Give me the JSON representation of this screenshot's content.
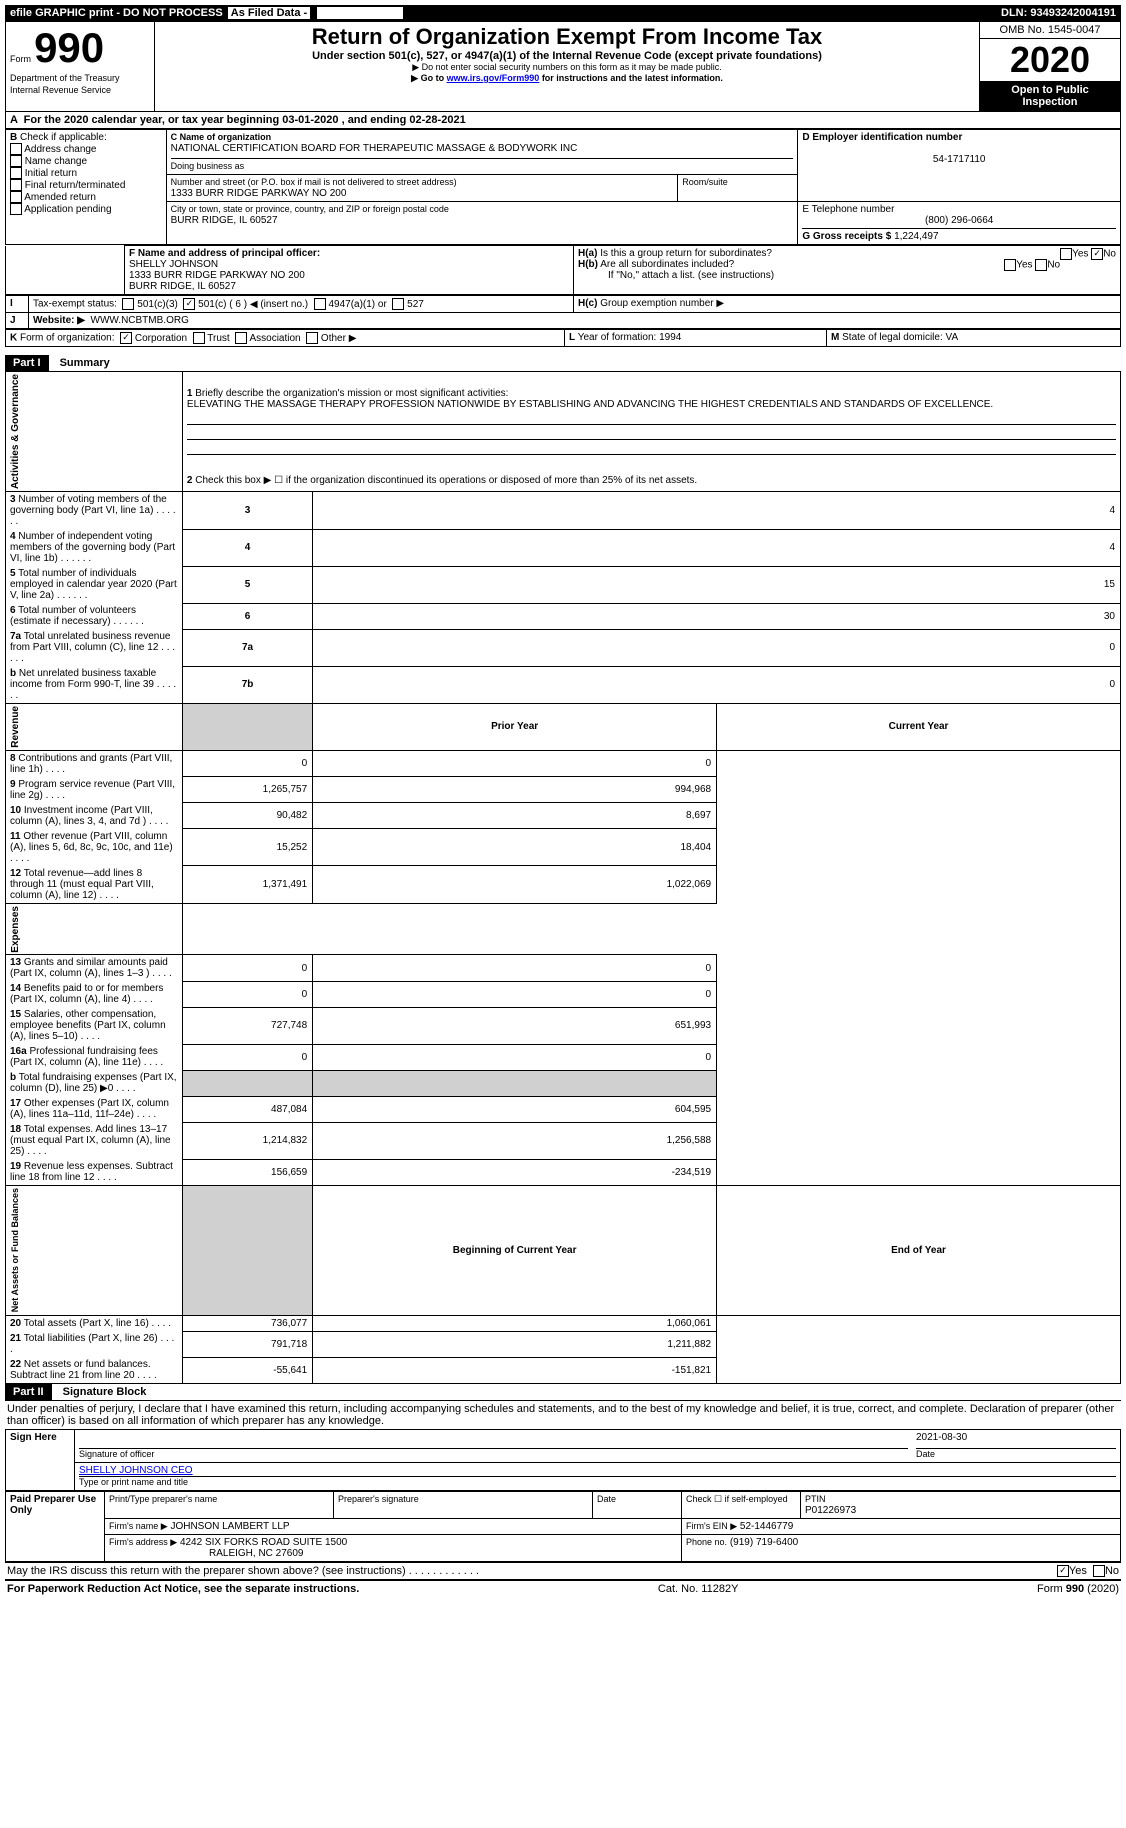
{
  "top": {
    "efile": "efile GRAPHIC print - DO NOT PROCESS",
    "asfiled": "As Filed Data -",
    "dln": "DLN: 93493242004191"
  },
  "header": {
    "form_label": "Form",
    "form_num": "990",
    "dept": "Department of the Treasury\nInternal Revenue Service",
    "title": "Return of Organization Exempt From Income Tax",
    "sub1": "Under section 501(c), 527, or 4947(a)(1) of the Internal Revenue Code (except private foundations)",
    "sub2": "▶ Do not enter social security numbers on this form as it may be made public.",
    "sub3_pre": "▶ Go to ",
    "sub3_link": "www.irs.gov/Form990",
    "sub3_post": " for instructions and the latest information.",
    "omb": "OMB No. 1545-0047",
    "year": "2020",
    "open": "Open to Public Inspection"
  },
  "lineA": "For the 2020 calendar year, or tax year beginning 03-01-2020   , and ending 02-28-2021",
  "B": {
    "label": "Check if applicable:",
    "opts": [
      "Address change",
      "Name change",
      "Initial return",
      "Final return/terminated",
      "Amended return",
      "Application pending"
    ]
  },
  "C": {
    "name_label": "C Name of organization",
    "name": "NATIONAL CERTIFICATION BOARD FOR THERAPEUTIC MASSAGE & BODYWORK INC",
    "dba_label": "Doing business as",
    "addr_label": "Number and street (or P.O. box if mail is not delivered to street address)",
    "room_label": "Room/suite",
    "addr": "1333 BURR RIDGE PARKWAY NO 200",
    "city_label": "City or town, state or province, country, and ZIP or foreign postal code",
    "city": "BURR RIDGE, IL  60527"
  },
  "D": {
    "label": "D Employer identification number",
    "val": "54-1717110"
  },
  "E": {
    "label": "E Telephone number",
    "val": "(800) 296-0664"
  },
  "G": {
    "label": "G Gross receipts $",
    "val": "1,224,497"
  },
  "F": {
    "label": "F  Name and address of principal officer:",
    "name": "SHELLY JOHNSON",
    "addr": "1333 BURR RIDGE PARKWAY NO 200",
    "city": "BURR RIDGE, IL  60527"
  },
  "H": {
    "a": "Is this a group return for subordinates?",
    "b": "Are all subordinates included?",
    "note": "If \"No,\" attach a list. (see instructions)",
    "c": "Group exemption number ▶"
  },
  "I": {
    "label": "Tax-exempt status:",
    "opts": [
      "501(c)(3)",
      "501(c) ( 6 ) ◀ (insert no.)",
      "4947(a)(1) or",
      "527"
    ]
  },
  "J": {
    "label": "Website: ▶",
    "val": "WWW.NCBTMB.ORG"
  },
  "K": {
    "label": "Form of organization:",
    "opts": [
      "Corporation",
      "Trust",
      "Association",
      "Other ▶"
    ]
  },
  "L": {
    "label": "Year of formation:",
    "val": "1994"
  },
  "M": {
    "label": "State of legal domicile:",
    "val": "VA"
  },
  "partI": {
    "header": "Part I",
    "title": "Summary",
    "line1_label": "Briefly describe the organization's mission or most significant activities:",
    "line1_text": "ELEVATING THE MASSAGE THERAPY PROFESSION NATIONWIDE BY ESTABLISHING AND ADVANCING THE HIGHEST CREDENTIALS AND STANDARDS OF EXCELLENCE.",
    "line2": "Check this box ▶ ☐ if the organization discontinued its operations or disposed of more than 25% of its net assets.",
    "rows_gov": [
      {
        "n": "3",
        "t": "Number of voting members of the governing body (Part VI, line 1a)",
        "box": "3",
        "v": "4"
      },
      {
        "n": "4",
        "t": "Number of independent voting members of the governing body (Part VI, line 1b)",
        "box": "4",
        "v": "4"
      },
      {
        "n": "5",
        "t": "Total number of individuals employed in calendar year 2020 (Part V, line 2a)",
        "box": "5",
        "v": "15"
      },
      {
        "n": "6",
        "t": "Total number of volunteers (estimate if necessary)",
        "box": "6",
        "v": "30"
      },
      {
        "n": "7a",
        "t": "Total unrelated business revenue from Part VIII, column (C), line 12",
        "box": "7a",
        "v": "0"
      },
      {
        "n": "b",
        "t": "Net unrelated business taxable income from Form 990-T, line 39",
        "box": "7b",
        "v": "0"
      }
    ],
    "col_headers": [
      "Prior Year",
      "Current Year"
    ],
    "rows_rev": [
      {
        "n": "8",
        "t": "Contributions and grants (Part VIII, line 1h)",
        "p": "0",
        "c": "0"
      },
      {
        "n": "9",
        "t": "Program service revenue (Part VIII, line 2g)",
        "p": "1,265,757",
        "c": "994,968"
      },
      {
        "n": "10",
        "t": "Investment income (Part VIII, column (A), lines 3, 4, and 7d )",
        "p": "90,482",
        "c": "8,697"
      },
      {
        "n": "11",
        "t": "Other revenue (Part VIII, column (A), lines 5, 6d, 8c, 9c, 10c, and 11e)",
        "p": "15,252",
        "c": "18,404"
      },
      {
        "n": "12",
        "t": "Total revenue—add lines 8 through 11 (must equal Part VIII, column (A), line 12)",
        "p": "1,371,491",
        "c": "1,022,069"
      }
    ],
    "rows_exp": [
      {
        "n": "13",
        "t": "Grants and similar amounts paid (Part IX, column (A), lines 1–3 )",
        "p": "0",
        "c": "0"
      },
      {
        "n": "14",
        "t": "Benefits paid to or for members (Part IX, column (A), line 4)",
        "p": "0",
        "c": "0"
      },
      {
        "n": "15",
        "t": "Salaries, other compensation, employee benefits (Part IX, column (A), lines 5–10)",
        "p": "727,748",
        "c": "651,993"
      },
      {
        "n": "16a",
        "t": "Professional fundraising fees (Part IX, column (A), line 11e)",
        "p": "0",
        "c": "0"
      },
      {
        "n": "b",
        "t": "Total fundraising expenses (Part IX, column (D), line 25) ▶0",
        "p": "",
        "c": ""
      },
      {
        "n": "17",
        "t": "Other expenses (Part IX, column (A), lines 11a–11d, 11f–24e)",
        "p": "487,084",
        "c": "604,595"
      },
      {
        "n": "18",
        "t": "Total expenses. Add lines 13–17 (must equal Part IX, column (A), line 25)",
        "p": "1,214,832",
        "c": "1,256,588"
      },
      {
        "n": "19",
        "t": "Revenue less expenses. Subtract line 18 from line 12",
        "p": "156,659",
        "c": "-234,519"
      }
    ],
    "col_headers2": [
      "Beginning of Current Year",
      "End of Year"
    ],
    "rows_net": [
      {
        "n": "20",
        "t": "Total assets (Part X, line 16)",
        "p": "736,077",
        "c": "1,060,061"
      },
      {
        "n": "21",
        "t": "Total liabilities (Part X, line 26)",
        "p": "791,718",
        "c": "1,211,882"
      },
      {
        "n": "22",
        "t": "Net assets or fund balances. Subtract line 21 from line 20",
        "p": "-55,641",
        "c": "-151,821"
      }
    ],
    "sections": [
      "Activities & Governance",
      "Revenue",
      "Expenses",
      "Net Assets or Fund Balances"
    ]
  },
  "partII": {
    "header": "Part II",
    "title": "Signature Block",
    "decl": "Under penalties of perjury, I declare that I have examined this return, including accompanying schedules and statements, and to the best of my knowledge and belief, it is true, correct, and complete. Declaration of preparer (other than officer) is based on all information of which preparer has any knowledge.",
    "sign_here": "Sign Here",
    "sig_officer": "Signature of officer",
    "date": "Date",
    "sig_date": "2021-08-30",
    "name_title": "SHELLY JOHNSON CEO",
    "type_name": "Type or print name and title",
    "paid": "Paid Preparer Use Only",
    "prep_name_label": "Print/Type preparer's name",
    "prep_sig_label": "Preparer's signature",
    "date_label": "Date",
    "check_self": "Check ☐ if self-employed",
    "ptin_label": "PTIN",
    "ptin": "P01226973",
    "firm_name_label": "Firm's name    ▶",
    "firm_name": "JOHNSON LAMBERT LLP",
    "firm_ein_label": "Firm's EIN ▶",
    "firm_ein": "52-1446779",
    "firm_addr_label": "Firm's address ▶",
    "firm_addr": "4242 SIX FORKS ROAD SUITE 1500",
    "firm_city": "RALEIGH, NC  27609",
    "phone_label": "Phone no.",
    "phone": "(919) 719-6400",
    "discuss": "May the IRS discuss this return with the preparer shown above? (see instructions)",
    "paperwork": "For Paperwork Reduction Act Notice, see the separate instructions.",
    "cat": "Cat. No. 11282Y",
    "form_foot": "Form 990 (2020)"
  }
}
